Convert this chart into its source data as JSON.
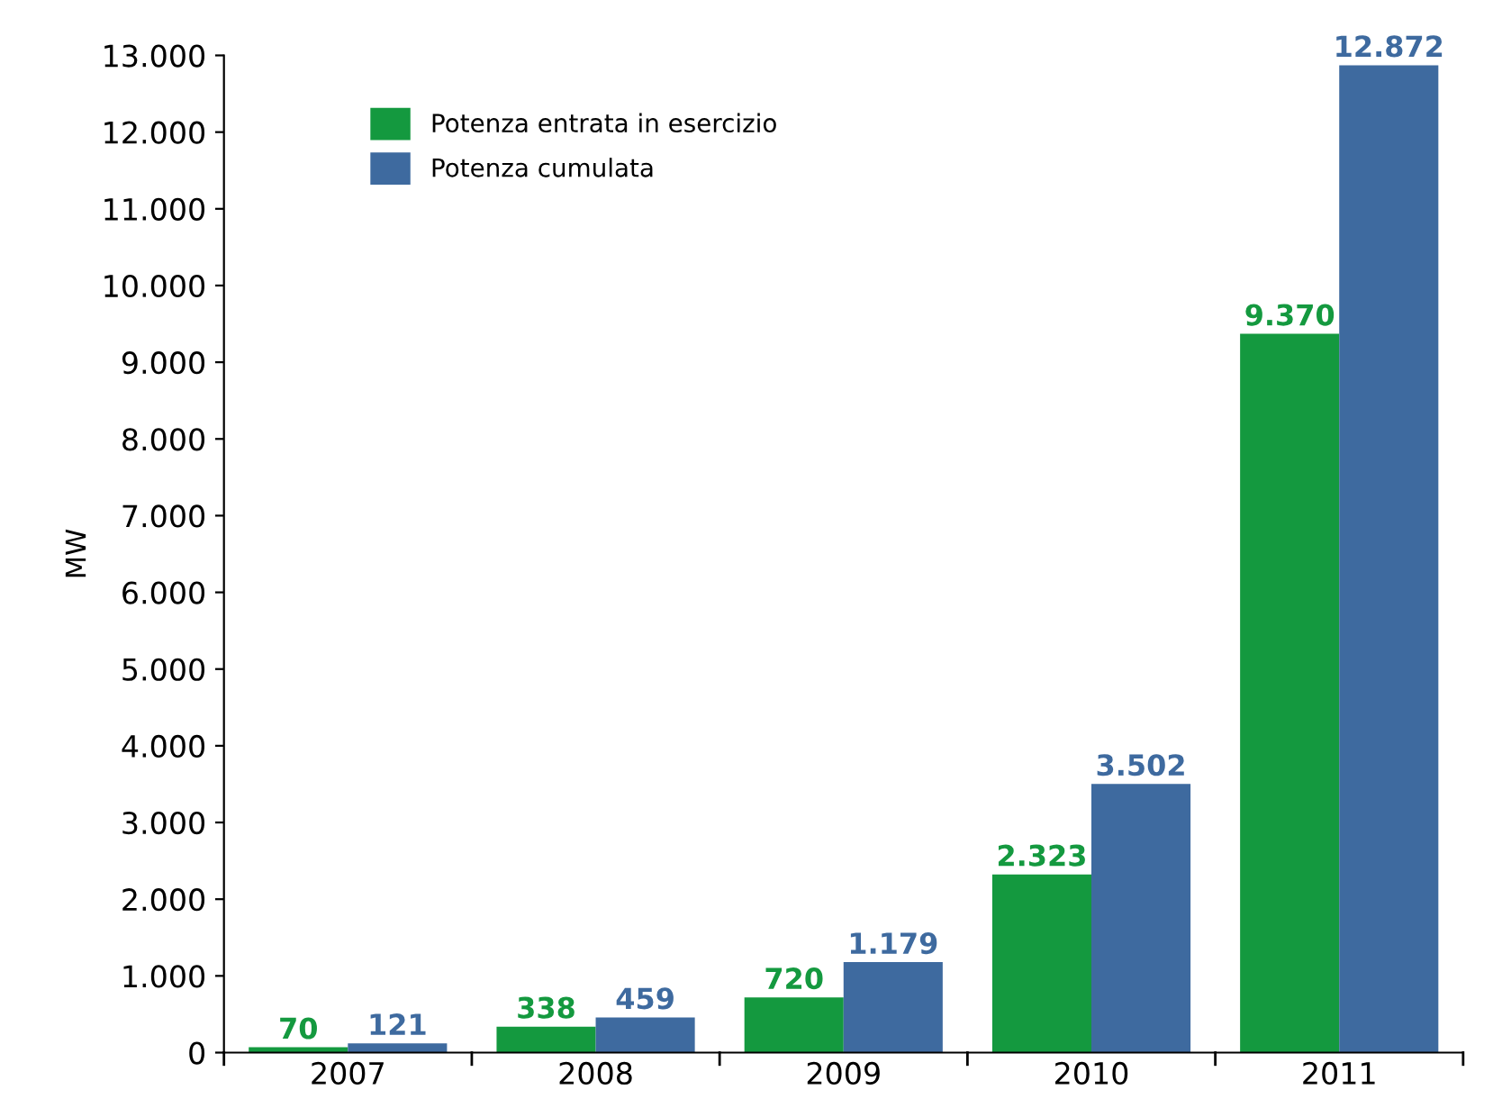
{
  "chart_data": {
    "type": "bar",
    "ylabel": "MW",
    "categories": [
      "2007",
      "2008",
      "2009",
      "2010",
      "2011"
    ],
    "series": [
      {
        "name": "Potenza entrata in esercizio",
        "color": "#14993f",
        "values": [
          70,
          338,
          720,
          2323,
          9370
        ],
        "value_labels": [
          "70",
          "338",
          "720",
          "2.323",
          "9.370"
        ]
      },
      {
        "name": "Potenza cumulata",
        "color": "#3e6a9f",
        "values": [
          121,
          459,
          1179,
          3502,
          12872
        ],
        "value_labels": [
          "121",
          "459",
          "1.179",
          "3.502",
          "12.872"
        ]
      }
    ],
    "ylim": [
      0,
      13000
    ],
    "yticks": [
      0,
      {
        "value": 1000,
        "label": "1.000"
      },
      {
        "value": 2000,
        "label": "2.000"
      },
      {
        "value": 3000,
        "label": "3.000"
      },
      {
        "value": 4000,
        "label": "4.000"
      },
      {
        "value": 5000,
        "label": "5.000"
      },
      {
        "value": 6000,
        "label": "6.000"
      },
      {
        "value": 7000,
        "label": "7.000"
      },
      {
        "value": 8000,
        "label": "8.000"
      },
      {
        "value": 9000,
        "label": "9.000"
      },
      {
        "value": 10000,
        "label": "10.000"
      },
      {
        "value": 11000,
        "label": "11.000"
      },
      {
        "value": 12000,
        "label": "12.000"
      },
      {
        "value": 13000,
        "label": "13.000"
      }
    ],
    "grid": false,
    "legend": "top left"
  }
}
